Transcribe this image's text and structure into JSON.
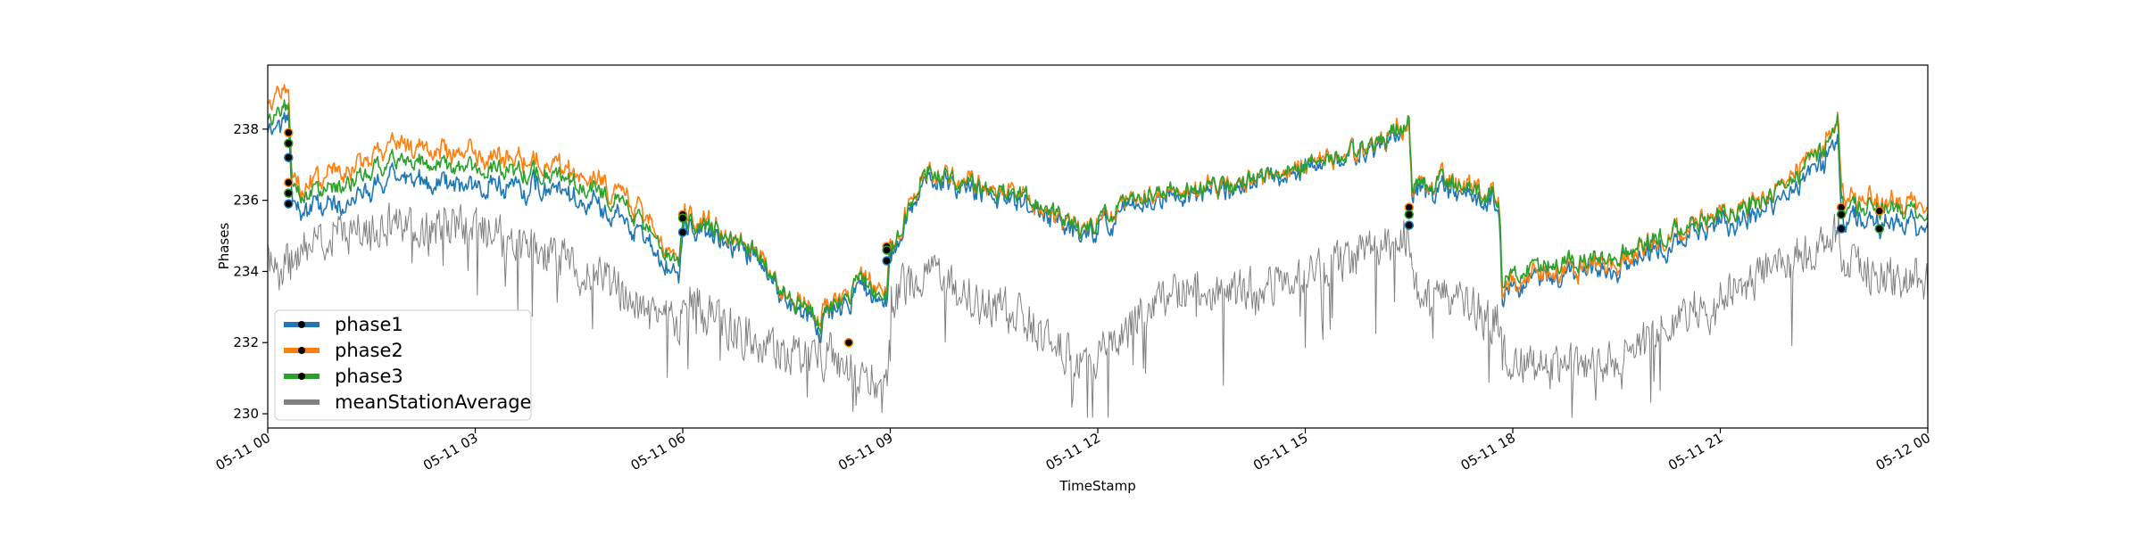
{
  "chart_data": {
    "type": "line",
    "title": "",
    "xlabel": "TimeStamp",
    "ylabel": "Phases",
    "xlim": [
      "2020-05-11 00:00",
      "2020-05-12 00:00"
    ],
    "ylim": [
      229.6,
      239.8
    ],
    "x_ticks": [
      "05-11 00",
      "05-11 03",
      "05-11 06",
      "05-11 09",
      "05-11 12",
      "05-11 15",
      "05-11 18",
      "05-11 21",
      "05-12 00"
    ],
    "y_ticks": [
      230,
      232,
      234,
      236,
      238
    ],
    "grid": false,
    "legend_position": "lower-left",
    "series": [
      {
        "name": "phase1",
        "color": "#1f77b4",
        "marker": "black dot"
      },
      {
        "name": "phase2",
        "color": "#ff7f0e",
        "marker": "black dot"
      },
      {
        "name": "phase3",
        "color": "#2ca02c",
        "marker": "black dot"
      },
      {
        "name": "meanStationAverage",
        "color": "#808080"
      }
    ],
    "profile_hours": [
      0,
      0.3,
      0.35,
      0.5,
      1,
      1.5,
      2,
      3,
      4,
      5,
      5.5,
      5.95,
      6.0,
      6.3,
      6.7,
      7,
      7.5,
      8,
      8.4,
      8.5,
      8.95,
      9.0,
      9.5,
      10,
      11,
      11.8,
      12.5,
      13,
      14,
      15,
      16,
      16.5,
      16.55,
      17,
      17.8,
      17.85,
      18.5,
      19.5,
      20.5,
      21.5,
      22,
      22.5,
      22.7,
      22.75,
      23.5,
      24
    ],
    "phase3_values": [
      238.2,
      238.7,
      236.2,
      236.1,
      236.3,
      236.9,
      237.2,
      236.9,
      236.8,
      236.1,
      235.2,
      234.2,
      235.6,
      235.3,
      235.0,
      234.6,
      233.3,
      232.6,
      233.3,
      233.8,
      233.3,
      234.5,
      236.9,
      236.4,
      236.1,
      235.1,
      236.0,
      236.4,
      236.3,
      237.0,
      237.6,
      238.2,
      236.3,
      236.5,
      236.1,
      233.8,
      234.2,
      234.4,
      235.3,
      235.9,
      236.4,
      237.4,
      238.2,
      235.8,
      235.8,
      235.6
    ],
    "phase2_offsets": [
      0.5,
      0.5,
      0.2,
      0.3,
      0.4,
      0.4,
      0.4,
      0.4,
      0.3,
      0.3,
      0.2,
      0.1,
      0.1,
      0.1,
      0.0,
      0.0,
      0.0,
      0.1,
      0.1,
      0.1,
      0.1,
      0.1,
      0.0,
      0.0,
      0.0,
      0.0,
      0.0,
      0.0,
      0.0,
      0.0,
      0.0,
      0.0,
      0.0,
      0.0,
      0.1,
      -0.2,
      -0.2,
      -0.1,
      0.0,
      0.0,
      0.1,
      0.1,
      0.1,
      0.2,
      0.2,
      0.2
    ],
    "phase1_offsets": [
      -0.4,
      -0.4,
      -0.4,
      -0.4,
      -0.5,
      -0.5,
      -0.5,
      -0.5,
      -0.4,
      -0.4,
      -0.4,
      -0.4,
      -0.2,
      -0.2,
      -0.2,
      -0.1,
      -0.2,
      -0.2,
      -0.2,
      -0.2,
      -0.2,
      -0.1,
      -0.2,
      -0.1,
      -0.2,
      -0.2,
      -0.2,
      -0.2,
      -0.1,
      -0.1,
      -0.1,
      -0.1,
      -0.2,
      -0.2,
      -0.2,
      -0.4,
      -0.3,
      -0.3,
      -0.3,
      -0.3,
      -0.3,
      -0.4,
      -0.4,
      -0.4,
      -0.4,
      -0.4
    ],
    "mean_values": [
      234.2,
      234.2,
      234.2,
      234.6,
      235.0,
      235.2,
      235.3,
      235.2,
      234.5,
      233.6,
      232.8,
      232.4,
      233.3,
      232.8,
      232.4,
      232.0,
      231.6,
      231.7,
      231.3,
      231.2,
      231.0,
      233.2,
      234.0,
      233.4,
      232.6,
      231.4,
      232.5,
      233.4,
      233.4,
      234.0,
      234.6,
      235.1,
      233.5,
      233.3,
      232.6,
      231.6,
      231.2,
      231.5,
      232.8,
      233.8,
      234.3,
      234.8,
      235.2,
      234.3,
      233.8,
      233.8
    ],
    "event_markers": [
      {
        "x": 0.3,
        "y": [
          237.9,
          237.6,
          237.2,
          236.5,
          236.2,
          235.9
        ]
      },
      {
        "x": 6.0,
        "y": [
          235.6,
          235.5,
          235.1
        ]
      },
      {
        "x": 8.4,
        "y": [
          232.0
        ]
      },
      {
        "x": 8.95,
        "y": [
          234.7,
          234.6,
          234.3
        ]
      },
      {
        "x": 16.5,
        "y": [
          235.8,
          235.6,
          235.3
        ]
      },
      {
        "x": 22.75,
        "y": [
          235.8,
          235.6,
          235.2
        ]
      },
      {
        "x": 23.3,
        "y": [
          235.7,
          235.2
        ]
      }
    ]
  }
}
